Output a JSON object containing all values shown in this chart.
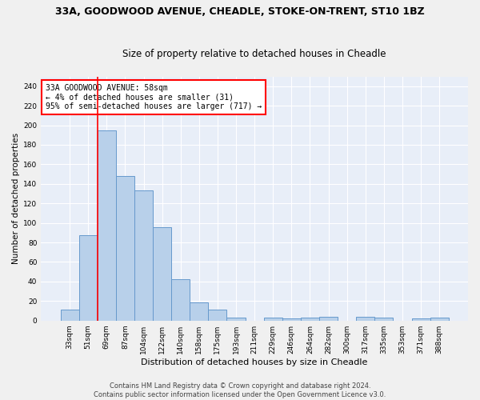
{
  "title": "33A, GOODWOOD AVENUE, CHEADLE, STOKE-ON-TRENT, ST10 1BZ",
  "subtitle": "Size of property relative to detached houses in Cheadle",
  "xlabel": "Distribution of detached houses by size in Cheadle",
  "ylabel": "Number of detached properties",
  "categories": [
    "33sqm",
    "51sqm",
    "69sqm",
    "87sqm",
    "104sqm",
    "122sqm",
    "140sqm",
    "158sqm",
    "175sqm",
    "193sqm",
    "211sqm",
    "229sqm",
    "246sqm",
    "264sqm",
    "282sqm",
    "300sqm",
    "317sqm",
    "335sqm",
    "353sqm",
    "371sqm",
    "388sqm"
  ],
  "values": [
    11,
    87,
    195,
    148,
    133,
    96,
    42,
    19,
    11,
    3,
    0,
    3,
    2,
    3,
    4,
    0,
    4,
    3,
    0,
    2,
    3
  ],
  "bar_color": "#b8d0ea",
  "bar_edge_color": "#6699cc",
  "red_line_x": 1.5,
  "annotation_line1": "33A GOODWOOD AVENUE: 58sqm",
  "annotation_line2": "← 4% of detached houses are smaller (31)",
  "annotation_line3": "95% of semi-detached houses are larger (717) →",
  "footer_line1": "Contains HM Land Registry data © Crown copyright and database right 2024.",
  "footer_line2": "Contains public sector information licensed under the Open Government Licence v3.0.",
  "ylim": [
    0,
    250
  ],
  "yticks": [
    0,
    20,
    40,
    60,
    80,
    100,
    120,
    140,
    160,
    180,
    200,
    220,
    240
  ],
  "fig_bg": "#f0f0f0",
  "ax_bg": "#e8eef8",
  "grid_color": "#ffffff",
  "title_fontsize": 9,
  "subtitle_fontsize": 8.5,
  "xlabel_fontsize": 8,
  "ylabel_fontsize": 7.5,
  "tick_fontsize": 6.5,
  "annotation_fontsize": 7,
  "footer_fontsize": 6
}
